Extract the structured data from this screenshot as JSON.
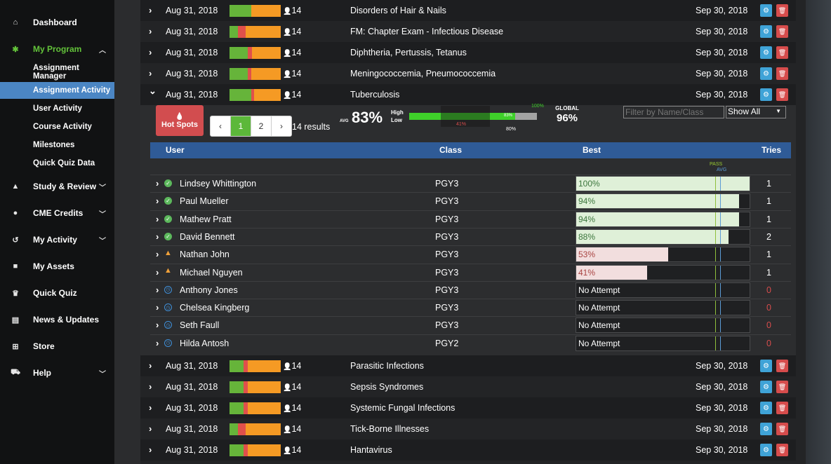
{
  "sidebar": {
    "items": [
      {
        "icon": "home-icon",
        "glyph": "⌂",
        "label": "Dashboard"
      },
      {
        "icon": "users-icon",
        "glyph": "✱",
        "label": "My Program",
        "chev": "︿",
        "active": true
      },
      {
        "icon": "graduation-cap-icon",
        "glyph": "▲",
        "label": "Study & Review",
        "chev": "﹀"
      },
      {
        "icon": "user-md-icon",
        "glyph": "●",
        "label": "CME Credits",
        "chev": "﹀"
      },
      {
        "icon": "history-icon",
        "glyph": "↺",
        "label": "My Activity",
        "chev": "﹀"
      },
      {
        "icon": "book-icon",
        "glyph": "■",
        "label": "My Assets"
      },
      {
        "icon": "trophy-icon",
        "glyph": "♛",
        "label": "Quick Quiz"
      },
      {
        "icon": "newspaper-icon",
        "glyph": "▤",
        "label": "News & Updates"
      },
      {
        "icon": "cart-icon",
        "glyph": "⊞",
        "label": "Store"
      },
      {
        "icon": "ambulance-icon",
        "glyph": "⛟",
        "label": "Help",
        "chev": "﹀"
      }
    ],
    "subitems": [
      {
        "label": "Assignment Manager"
      },
      {
        "label": "Assignment Activity",
        "active": true
      },
      {
        "label": "User Activity"
      },
      {
        "label": "Course Activity"
      },
      {
        "label": "Milestones"
      },
      {
        "label": "Quick Quiz Data"
      }
    ]
  },
  "assignments_top": [
    {
      "date": "Aug 31, 2018",
      "users": "14",
      "title": "Disorders of Hair & Nails",
      "due": "Sep 30, 2018",
      "bar": [
        0.42,
        0.0,
        0.58
      ]
    },
    {
      "date": "Aug 31, 2018",
      "users": "14",
      "title": "FM: Chapter Exam - Infectious Disease",
      "due": "Sep 30, 2018",
      "bar": [
        0.17,
        0.14,
        0.69
      ]
    },
    {
      "date": "Aug 31, 2018",
      "users": "14",
      "title": "Diphtheria, Pertussis, Tetanus",
      "due": "Sep 30, 2018",
      "bar": [
        0.36,
        0.08,
        0.56
      ]
    },
    {
      "date": "Aug 31, 2018",
      "users": "14",
      "title": "Meningococcemia, Pneumococcemia",
      "due": "Sep 30, 2018",
      "bar": [
        0.36,
        0.06,
        0.58
      ]
    },
    {
      "date": "Aug 31, 2018",
      "users": "14",
      "title": "Tuberculosis",
      "due": "Sep 30, 2018",
      "bar": [
        0.42,
        0.06,
        0.52
      ],
      "expanded": true
    }
  ],
  "detail": {
    "hotspots_label": "Hot Spots",
    "pager": [
      "‹",
      "1",
      "2",
      "›"
    ],
    "results": "14 results",
    "avg_label": "AVG",
    "avg_value": "83%",
    "high": "High",
    "low": "Low",
    "scale_top": "100%",
    "scale_inner": "83%",
    "scale_low": "41%",
    "scale_bottom": "80%",
    "global_label": "GLOBAL",
    "global_value": "96%",
    "filter_placeholder": "Filter by Name/Class",
    "select_value": "Show All",
    "headers": {
      "user": "User",
      "class": "Class",
      "best": "Best",
      "tries": "Tries"
    },
    "pass_label": "PASS",
    "avg_marker_label": "AVG",
    "students": [
      {
        "name": "Lindsey Whittington",
        "class": "PGY3",
        "best": "100%",
        "score": 1.0,
        "tries": "1",
        "status": "pass"
      },
      {
        "name": "Paul Mueller",
        "class": "PGY3",
        "best": "94%",
        "score": 0.94,
        "tries": "1",
        "status": "pass"
      },
      {
        "name": "Mathew Pratt",
        "class": "PGY3",
        "best": "94%",
        "score": 0.94,
        "tries": "1",
        "status": "pass"
      },
      {
        "name": "David Bennett",
        "class": "PGY3",
        "best": "88%",
        "score": 0.88,
        "tries": "2",
        "status": "pass"
      },
      {
        "name": "Nathan John",
        "class": "PGY3",
        "best": "53%",
        "score": 0.53,
        "tries": "1",
        "status": "warn"
      },
      {
        "name": "Michael Nguyen",
        "class": "PGY3",
        "best": "41%",
        "score": 0.41,
        "tries": "1",
        "status": "warn"
      },
      {
        "name": "Anthony Jones",
        "class": "PGY3",
        "best": "No Attempt",
        "score": 0,
        "tries": "0",
        "status": "pend"
      },
      {
        "name": "Chelsea Kingberg",
        "class": "PGY3",
        "best": "No Attempt",
        "score": 0,
        "tries": "0",
        "status": "pend"
      },
      {
        "name": "Seth Faull",
        "class": "PGY3",
        "best": "No Attempt",
        "score": 0,
        "tries": "0",
        "status": "pend"
      },
      {
        "name": "Hilda  Antosh",
        "class": "PGY2",
        "best": "No Attempt",
        "score": 0,
        "tries": "0",
        "status": "pend"
      }
    ]
  },
  "assignments_bottom": [
    {
      "date": "Aug 31, 2018",
      "users": "14",
      "title": "Parasitic Infections",
      "due": "Sep 30, 2018",
      "bar": [
        0.28,
        0.08,
        0.64
      ]
    },
    {
      "date": "Aug 31, 2018",
      "users": "14",
      "title": "Sepsis Syndromes",
      "due": "Sep 30, 2018",
      "bar": [
        0.28,
        0.08,
        0.64
      ]
    },
    {
      "date": "Aug 31, 2018",
      "users": "14",
      "title": "Systemic Fungal Infections",
      "due": "Sep 30, 2018",
      "bar": [
        0.28,
        0.08,
        0.64
      ]
    },
    {
      "date": "Aug 31, 2018",
      "users": "14",
      "title": "Tick-Borne Illnesses",
      "due": "Sep 30, 2018",
      "bar": [
        0.17,
        0.14,
        0.69
      ]
    },
    {
      "date": "Aug 31, 2018",
      "users": "14",
      "title": "Hantavirus",
      "due": "Sep 30, 2018",
      "bar": [
        0.28,
        0.08,
        0.64
      ]
    }
  ],
  "colors": {
    "green": "#66b43a",
    "red": "#e0504b",
    "orange": "#f59a24",
    "pass_fill": "#dff0d8",
    "fail_fill": "#f2dede",
    "pass_text": "#3c763d",
    "fail_text": "#a94442"
  }
}
